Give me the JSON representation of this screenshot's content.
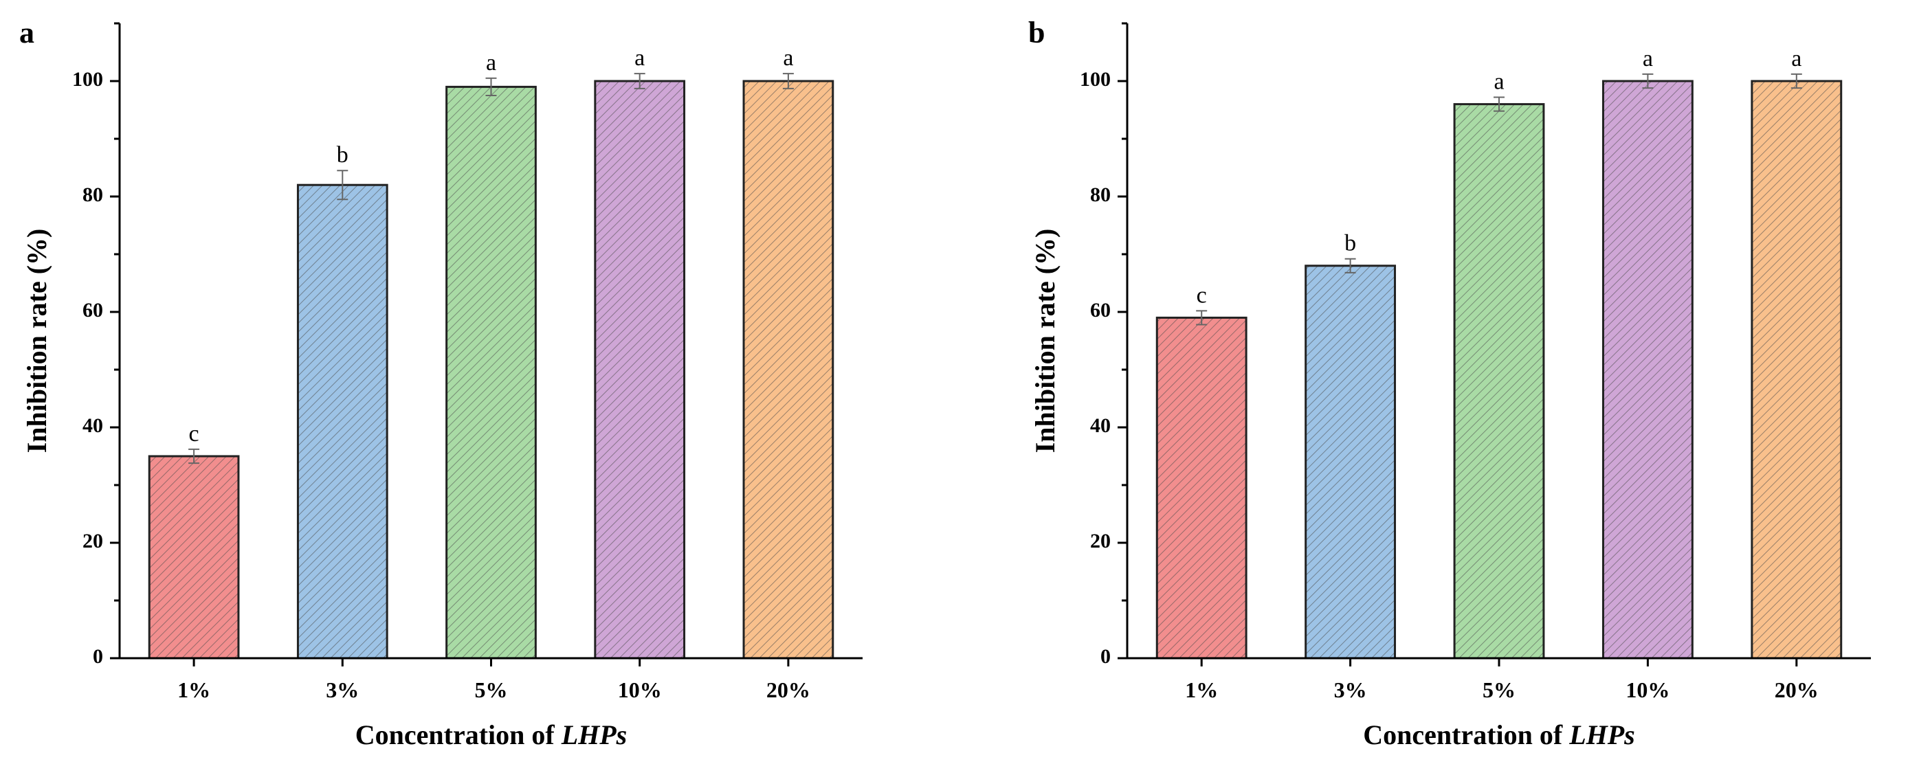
{
  "chart_data": [
    {
      "type": "bar",
      "panel_label": "a",
      "categories": [
        "1%",
        "3%",
        "5%",
        "10%",
        "20%"
      ],
      "values": [
        35,
        82,
        99,
        100,
        100
      ],
      "errors": [
        1.2,
        2.5,
        1.5,
        1.3,
        1.3
      ],
      "significance": [
        "c",
        "b",
        "a",
        "a",
        "a"
      ],
      "colors": [
        "#f28e8e",
        "#9dc3e6",
        "#a9dba5",
        "#cfa6d6",
        "#f9c08c"
      ],
      "xlabel_prefix": "Concentration of ",
      "xlabel_italic": "LHPs",
      "ylabel": "Inhibition rate (%)",
      "ylim": [
        0,
        110
      ],
      "yticks": [
        "0",
        "20",
        "40",
        "60",
        "80",
        "100"
      ],
      "grid": false
    },
    {
      "type": "bar",
      "panel_label": "b",
      "categories": [
        "1%",
        "3%",
        "5%",
        "10%",
        "20%"
      ],
      "values": [
        59,
        68,
        96,
        100,
        100
      ],
      "errors": [
        1.2,
        1.2,
        1.2,
        1.2,
        1.2
      ],
      "significance": [
        "c",
        "b",
        "a",
        "a",
        "a"
      ],
      "colors": [
        "#f28e8e",
        "#9dc3e6",
        "#a9dba5",
        "#cfa6d6",
        "#f9c08c"
      ],
      "xlabel_prefix": "Concentration of ",
      "xlabel_italic": "LHPs",
      "ylabel": "Inhibition rate (%)",
      "ylim": [
        0,
        110
      ],
      "yticks": [
        "0",
        "20",
        "40",
        "60",
        "80",
        "100"
      ],
      "grid": false
    }
  ]
}
